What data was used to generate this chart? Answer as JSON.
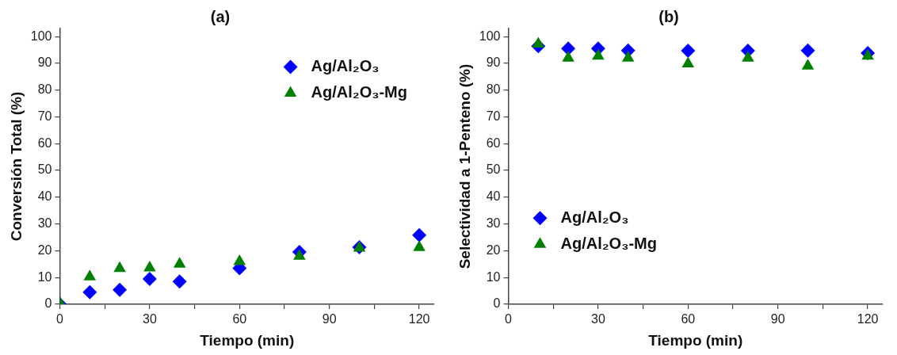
{
  "chart_data": [
    {
      "type": "scatter",
      "title": "(a)",
      "xlabel": "Tiempo (min)",
      "ylabel": "Conversión Total (%)",
      "x": [
        0,
        10,
        20,
        30,
        40,
        60,
        80,
        100,
        120
      ],
      "series": [
        {
          "name": "Ag/Al₂O₃",
          "color": "#0000ff",
          "marker": "diamond",
          "values": [
            0,
            4.5,
            5.4,
            9.5,
            8.5,
            13.5,
            19.5,
            21.3,
            25.8
          ]
        },
        {
          "name": "Ag/Al₂O₃-Mg",
          "color": "#008000",
          "marker": "triangle",
          "values": [
            0.5,
            10.3,
            13.4,
            13.6,
            15,
            16,
            18,
            21,
            21.2
          ]
        }
      ],
      "xlim": [
        0,
        125
      ],
      "xticks": [
        0,
        {
          "value": 15,
          "label": null
        },
        30,
        {
          "value": 45,
          "label": null
        },
        60,
        {
          "value": 75,
          "label": null
        },
        90,
        {
          "value": 105,
          "label": null
        },
        120
      ],
      "ylim": [
        0,
        103
      ],
      "yticks": [
        0,
        10,
        20,
        30,
        40,
        50,
        60,
        70,
        80,
        90,
        100
      ],
      "grid": false,
      "legend": "top right"
    },
    {
      "type": "scatter",
      "title": "(b)",
      "xlabel": "Tiempo (min)",
      "ylabel": "Selectividad a 1-Penteno (%)",
      "x": [
        10,
        20,
        30,
        40,
        60,
        80,
        100,
        120
      ],
      "series": [
        {
          "name": "Ag/Al₂O₃",
          "color": "#0000ff",
          "marker": "diamond",
          "values": [
            96.4,
            95.5,
            95.5,
            94.8,
            94.7,
            94.7,
            94.8,
            93.8
          ]
        },
        {
          "name": "Ag/Al₂O₃-Mg",
          "color": "#008000",
          "marker": "triangle",
          "values": [
            97.2,
            92,
            92.7,
            92,
            89.8,
            92,
            89,
            92.7
          ]
        }
      ],
      "xlim": [
        0,
        125
      ],
      "xticks": [
        0,
        {
          "value": 15,
          "label": null
        },
        30,
        {
          "value": 45,
          "label": null
        },
        60,
        {
          "value": 75,
          "label": null
        },
        90,
        {
          "value": 105,
          "label": null
        },
        120
      ],
      "ylim": [
        0,
        103
      ],
      "yticks": [
        0,
        10,
        20,
        30,
        40,
        50,
        60,
        70,
        80,
        90,
        100
      ],
      "grid": false,
      "legend": "left"
    }
  ]
}
